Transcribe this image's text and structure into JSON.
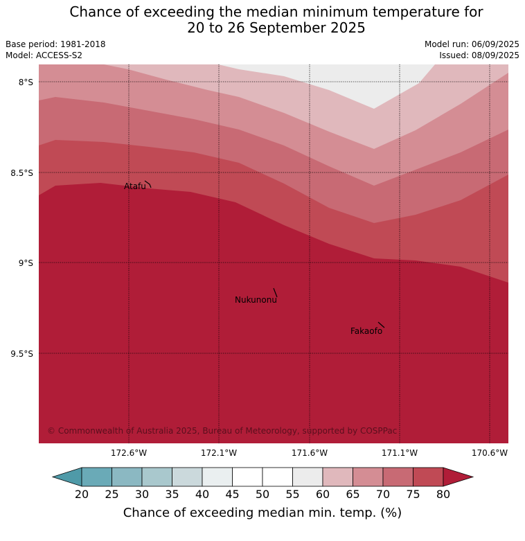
{
  "title_line1": "Chance of exceeding the median minimum temperature for",
  "title_line2": "20 to 26 September 2025",
  "base_period": "Base period: 1981-2018",
  "model": "Model: ACCESS-S2",
  "model_run": "Model run: 06/09/2025",
  "issued": "Issued: 08/09/2025",
  "lat_labels": [
    "8°S",
    "8.5°S",
    "9°S",
    "9.5°S"
  ],
  "lon_labels": [
    "172.6°W",
    "172.1°W",
    "171.6°W",
    "171.1°W",
    "170.6°W"
  ],
  "places": [
    {
      "name": "Atafu"
    },
    {
      "name": "Nukunonu"
    },
    {
      "name": "Fakaofo"
    }
  ],
  "copyright": "© Commonwealth of Australia 2025, Bureau of Meteorology, supported by COSPPac",
  "colorbar": {
    "ticks": [
      "20",
      "25",
      "30",
      "35",
      "40",
      "45",
      "50",
      "55",
      "60",
      "65",
      "70",
      "75",
      "80"
    ],
    "colors": [
      "#4f9aa8",
      "#6aaab7",
      "#8bb8c2",
      "#a9c8cd",
      "#cbd9dc",
      "#eaeff0",
      "#ffffff",
      "#ffffff",
      "#ececec",
      "#e0b8bc",
      "#d48d94",
      "#c86a74",
      "#c04a55",
      "#b01d38"
    ],
    "label": "Chance of exceeding median min. temp. (%)"
  },
  "band_colors": {
    "55-60": "#ececec",
    "60-65": "#e0b8bc",
    "65-70": "#d48d94",
    "70-75": "#c86a74",
    "75-80": "#c04a55",
    "80+": "#b01d38"
  }
}
